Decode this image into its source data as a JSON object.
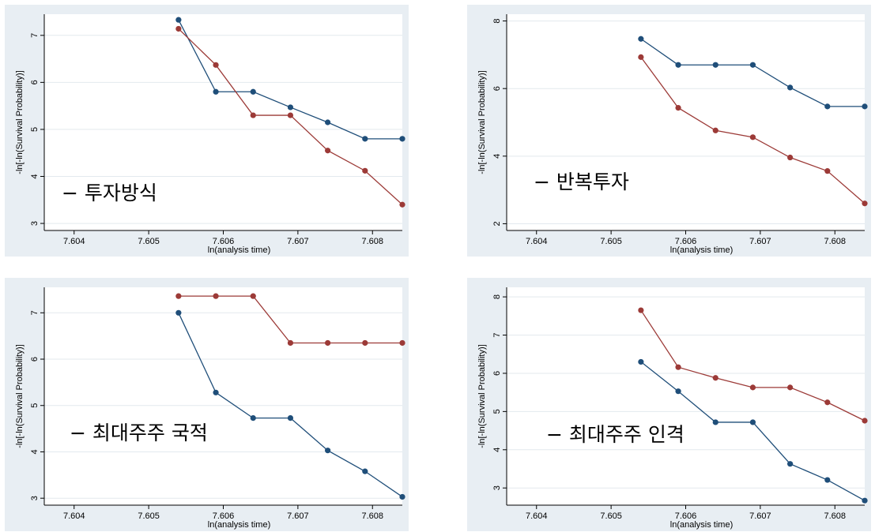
{
  "chart_data": [
    {
      "type": "line",
      "caption": "− 투자방식",
      "xlabel": "ln(analysis time)",
      "ylabel": "-ln[-ln(Survival Probability)]",
      "xlim": [
        7.6036,
        7.6084
      ],
      "ylim": [
        2.85,
        7.45
      ],
      "xticks": [
        7.604,
        7.605,
        7.606,
        7.607,
        7.608
      ],
      "xtick_labels": [
        "7.604",
        "7.605",
        "7.606",
        "7.607",
        "7.608"
      ],
      "yticks": [
        3,
        4,
        5,
        6,
        7
      ],
      "ytick_labels": [
        "3",
        "4",
        "5",
        "6",
        "7"
      ],
      "x": [
        7.6054,
        7.6059,
        7.6064,
        7.6069,
        7.6074,
        7.6079,
        7.6084
      ],
      "series": [
        {
          "color": "#1f4e79",
          "values": [
            7.33,
            5.8,
            5.8,
            5.47,
            5.15,
            4.8,
            4.8
          ]
        },
        {
          "color": "#9c3a37",
          "values": [
            7.14,
            6.37,
            5.3,
            5.3,
            4.55,
            4.12,
            3.4
          ]
        }
      ]
    },
    {
      "type": "line",
      "caption": "− 반복투자",
      "xlabel": "ln(analysis time)",
      "ylabel": "-ln[-ln(Survival Probability)]",
      "xlim": [
        7.6036,
        7.6084
      ],
      "ylim": [
        1.8,
        8.2
      ],
      "xticks": [
        7.604,
        7.605,
        7.606,
        7.607,
        7.608
      ],
      "xtick_labels": [
        "7.604",
        "7.605",
        "7.606",
        "7.607",
        "7.608"
      ],
      "yticks": [
        2,
        4,
        6,
        8
      ],
      "ytick_labels": [
        "2",
        "4",
        "6",
        "8"
      ],
      "x": [
        7.6054,
        7.6059,
        7.6064,
        7.6069,
        7.6074,
        7.6079,
        7.6084
      ],
      "series": [
        {
          "color": "#1f4e79",
          "values": [
            7.47,
            6.7,
            6.7,
            6.7,
            6.03,
            5.47,
            5.47
          ]
        },
        {
          "color": "#9c3a37",
          "values": [
            6.93,
            5.43,
            4.76,
            4.56,
            3.96,
            3.56,
            2.6
          ]
        }
      ]
    },
    {
      "type": "line",
      "caption": "− 최대주주 국적",
      "xlabel": "ln(analysis time)",
      "ylabel": "-ln[-ln(Survival Probability)]",
      "xlim": [
        7.6036,
        7.6084
      ],
      "ylim": [
        2.85,
        7.55
      ],
      "xticks": [
        7.604,
        7.605,
        7.606,
        7.607,
        7.608
      ],
      "xtick_labels": [
        "7.604",
        "7.605",
        "7.606",
        "7.607",
        "7.608"
      ],
      "yticks": [
        3,
        4,
        5,
        6,
        7
      ],
      "ytick_labels": [
        "3",
        "4",
        "5",
        "6",
        "7"
      ],
      "x": [
        7.6054,
        7.6059,
        7.6064,
        7.6069,
        7.6074,
        7.6079,
        7.6084
      ],
      "series": [
        {
          "color": "#1f4e79",
          "values": [
            7.0,
            5.28,
            4.73,
            4.73,
            4.03,
            3.58,
            3.03
          ]
        },
        {
          "color": "#9c3a37",
          "values": [
            7.36,
            7.36,
            7.36,
            6.35,
            6.35,
            6.35,
            6.35
          ]
        }
      ]
    },
    {
      "type": "line",
      "caption": "− 최대주주 인격",
      "xlabel": "ln(analysis time)",
      "ylabel": "-ln[-ln(Survival Probability)]",
      "xlim": [
        7.6036,
        7.6084
      ],
      "ylim": [
        2.55,
        8.25
      ],
      "xticks": [
        7.604,
        7.605,
        7.606,
        7.607,
        7.608
      ],
      "xtick_labels": [
        "7.604",
        "7.605",
        "7.606",
        "7.607",
        "7.608"
      ],
      "yticks": [
        3,
        4,
        5,
        6,
        7,
        8
      ],
      "ytick_labels": [
        "3",
        "4",
        "5",
        "6",
        "7",
        "8"
      ],
      "x": [
        7.6054,
        7.6059,
        7.6064,
        7.6069,
        7.6074,
        7.6079,
        7.6084
      ],
      "series": [
        {
          "color": "#1f4e79",
          "values": [
            6.3,
            5.53,
            4.72,
            4.72,
            3.63,
            3.21,
            2.67
          ]
        },
        {
          "color": "#9c3a37",
          "values": [
            7.65,
            6.16,
            5.88,
            5.63,
            5.63,
            5.24,
            4.76
          ]
        }
      ]
    }
  ]
}
